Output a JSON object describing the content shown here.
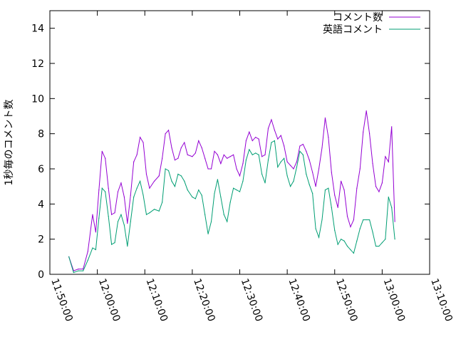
{
  "chart_data": {
    "type": "line",
    "ylabel": "1秒毎のコメント数",
    "xlabel": "",
    "x_range": [
      "11:50:00",
      "13:10:00"
    ],
    "ylim": [
      0,
      15
    ],
    "x_ticks": [
      "11:50:00",
      "12:00:00",
      "12:10:00",
      "12:20:00",
      "12:30:00",
      "12:40:00",
      "12:50:00",
      "13:00:00",
      "13:10:00"
    ],
    "y_ticks": [
      0,
      2,
      4,
      6,
      8,
      10,
      12,
      14
    ],
    "grid": false,
    "legend_position": "top-right",
    "colors": {
      "series1": "#9400d3",
      "series2": "#009e73"
    },
    "series": [
      {
        "name": "コメント数",
        "points": [
          [
            "11:54:00",
            1.0
          ],
          [
            "11:55:00",
            0.2
          ],
          [
            "11:56:00",
            0.3
          ],
          [
            "11:57:00",
            0.3
          ],
          [
            "11:58:00",
            1.3
          ],
          [
            "11:59:00",
            3.4
          ],
          [
            "11:59:40",
            2.4
          ],
          [
            "12:00:20",
            4.8
          ],
          [
            "12:01:00",
            7.0
          ],
          [
            "12:01:40",
            6.6
          ],
          [
            "12:02:20",
            4.9
          ],
          [
            "12:03:00",
            3.4
          ],
          [
            "12:03:40",
            3.5
          ],
          [
            "12:04:20",
            4.7
          ],
          [
            "12:05:00",
            5.2
          ],
          [
            "12:05:40",
            4.4
          ],
          [
            "12:06:20",
            2.9
          ],
          [
            "12:07:00",
            4.5
          ],
          [
            "12:07:40",
            6.4
          ],
          [
            "12:08:20",
            6.8
          ],
          [
            "12:09:00",
            7.8
          ],
          [
            "12:09:40",
            7.5
          ],
          [
            "12:10:20",
            5.7
          ],
          [
            "12:11:00",
            4.9
          ],
          [
            "12:12:00",
            5.3
          ],
          [
            "12:13:00",
            5.6
          ],
          [
            "12:13:40",
            6.6
          ],
          [
            "12:14:20",
            8.0
          ],
          [
            "12:15:00",
            8.2
          ],
          [
            "12:15:40",
            7.2
          ],
          [
            "12:16:20",
            6.5
          ],
          [
            "12:17:00",
            6.6
          ],
          [
            "12:17:40",
            7.2
          ],
          [
            "12:18:20",
            7.5
          ],
          [
            "12:19:00",
            6.8
          ],
          [
            "12:20:00",
            6.7
          ],
          [
            "12:20:40",
            6.9
          ],
          [
            "12:21:20",
            7.6
          ],
          [
            "12:22:00",
            7.2
          ],
          [
            "12:22:40",
            6.6
          ],
          [
            "12:23:20",
            6.0
          ],
          [
            "12:24:00",
            6.0
          ],
          [
            "12:24:40",
            7.0
          ],
          [
            "12:25:20",
            6.8
          ],
          [
            "12:26:00",
            6.3
          ],
          [
            "12:26:40",
            6.8
          ],
          [
            "12:27:20",
            6.6
          ],
          [
            "12:28:00",
            6.7
          ],
          [
            "12:28:40",
            6.8
          ],
          [
            "12:29:20",
            6.0
          ],
          [
            "12:30:00",
            5.6
          ],
          [
            "12:30:40",
            6.3
          ],
          [
            "12:31:20",
            7.6
          ],
          [
            "12:32:00",
            8.1
          ],
          [
            "12:32:40",
            7.6
          ],
          [
            "12:33:20",
            7.8
          ],
          [
            "12:34:00",
            7.7
          ],
          [
            "12:34:40",
            6.7
          ],
          [
            "12:35:20",
            6.8
          ],
          [
            "12:36:00",
            8.3
          ],
          [
            "12:36:40",
            8.8
          ],
          [
            "12:37:20",
            8.2
          ],
          [
            "12:38:00",
            7.7
          ],
          [
            "12:38:40",
            7.9
          ],
          [
            "12:39:20",
            7.3
          ],
          [
            "12:40:00",
            6.4
          ],
          [
            "12:40:40",
            6.2
          ],
          [
            "12:41:20",
            6.0
          ],
          [
            "12:42:00",
            6.4
          ],
          [
            "12:42:40",
            7.3
          ],
          [
            "12:43:20",
            7.4
          ],
          [
            "12:44:00",
            7.0
          ],
          [
            "12:44:40",
            6.5
          ],
          [
            "12:45:20",
            5.8
          ],
          [
            "12:46:00",
            5.0
          ],
          [
            "12:46:40",
            6.0
          ],
          [
            "12:47:20",
            7.2
          ],
          [
            "12:48:00",
            8.9
          ],
          [
            "12:48:40",
            7.8
          ],
          [
            "12:49:20",
            5.8
          ],
          [
            "12:50:00",
            4.5
          ],
          [
            "12:50:40",
            3.8
          ],
          [
            "12:51:20",
            5.3
          ],
          [
            "12:52:00",
            4.8
          ],
          [
            "12:52:40",
            3.3
          ],
          [
            "12:53:20",
            2.7
          ],
          [
            "12:54:00",
            3.1
          ],
          [
            "12:54:40",
            4.9
          ],
          [
            "12:55:20",
            6.0
          ],
          [
            "12:56:00",
            8.1
          ],
          [
            "12:56:40",
            9.3
          ],
          [
            "12:57:20",
            8.0
          ],
          [
            "12:58:00",
            6.3
          ],
          [
            "12:58:40",
            5.0
          ],
          [
            "12:59:20",
            4.7
          ],
          [
            "13:00:00",
            5.2
          ],
          [
            "13:00:40",
            6.7
          ],
          [
            "13:01:20",
            6.4
          ],
          [
            "13:02:00",
            8.4
          ],
          [
            "13:02:40",
            3.0
          ]
        ]
      },
      {
        "name": "英語コメント",
        "points": [
          [
            "11:54:00",
            1.0
          ],
          [
            "11:55:00",
            0.1
          ],
          [
            "11:56:00",
            0.2
          ],
          [
            "11:57:00",
            0.2
          ],
          [
            "11:58:00",
            0.8
          ],
          [
            "11:59:00",
            1.5
          ],
          [
            "11:59:40",
            1.4
          ],
          [
            "12:00:20",
            3.2
          ],
          [
            "12:01:00",
            4.9
          ],
          [
            "12:01:40",
            4.7
          ],
          [
            "12:02:20",
            3.3
          ],
          [
            "12:03:00",
            1.7
          ],
          [
            "12:03:40",
            1.8
          ],
          [
            "12:04:20",
            3.0
          ],
          [
            "12:05:00",
            3.4
          ],
          [
            "12:05:40",
            2.8
          ],
          [
            "12:06:20",
            1.6
          ],
          [
            "12:07:00",
            3.0
          ],
          [
            "12:07:40",
            4.4
          ],
          [
            "12:08:20",
            4.9
          ],
          [
            "12:09:00",
            5.3
          ],
          [
            "12:09:40",
            4.5
          ],
          [
            "12:10:20",
            3.4
          ],
          [
            "12:11:00",
            3.5
          ],
          [
            "12:12:00",
            3.7
          ],
          [
            "12:13:00",
            3.6
          ],
          [
            "12:13:40",
            4.1
          ],
          [
            "12:14:20",
            6.0
          ],
          [
            "12:15:00",
            5.9
          ],
          [
            "12:15:40",
            5.3
          ],
          [
            "12:16:20",
            5.0
          ],
          [
            "12:17:00",
            5.7
          ],
          [
            "12:17:40",
            5.6
          ],
          [
            "12:18:20",
            5.3
          ],
          [
            "12:19:00",
            4.8
          ],
          [
            "12:20:00",
            4.4
          ],
          [
            "12:20:40",
            4.3
          ],
          [
            "12:21:20",
            4.8
          ],
          [
            "12:22:00",
            4.5
          ],
          [
            "12:22:40",
            3.4
          ],
          [
            "12:23:20",
            2.3
          ],
          [
            "12:24:00",
            3.0
          ],
          [
            "12:24:40",
            4.6
          ],
          [
            "12:25:20",
            5.4
          ],
          [
            "12:26:00",
            4.4
          ],
          [
            "12:26:40",
            3.4
          ],
          [
            "12:27:20",
            3.0
          ],
          [
            "12:28:00",
            4.1
          ],
          [
            "12:28:40",
            4.9
          ],
          [
            "12:29:20",
            4.8
          ],
          [
            "12:30:00",
            4.7
          ],
          [
            "12:30:40",
            5.3
          ],
          [
            "12:31:20",
            6.5
          ],
          [
            "12:32:00",
            7.1
          ],
          [
            "12:32:40",
            6.8
          ],
          [
            "12:33:20",
            6.9
          ],
          [
            "12:34:00",
            6.8
          ],
          [
            "12:34:40",
            5.7
          ],
          [
            "12:35:20",
            5.2
          ],
          [
            "12:36:00",
            6.5
          ],
          [
            "12:36:40",
            7.5
          ],
          [
            "12:37:20",
            7.6
          ],
          [
            "12:38:00",
            6.1
          ],
          [
            "12:38:40",
            6.4
          ],
          [
            "12:39:20",
            6.6
          ],
          [
            "12:40:00",
            5.6
          ],
          [
            "12:40:40",
            5.0
          ],
          [
            "12:41:20",
            5.3
          ],
          [
            "12:42:00",
            6.1
          ],
          [
            "12:42:40",
            7.0
          ],
          [
            "12:43:20",
            6.8
          ],
          [
            "12:44:00",
            5.7
          ],
          [
            "12:44:40",
            5.1
          ],
          [
            "12:45:20",
            4.6
          ],
          [
            "12:46:00",
            2.6
          ],
          [
            "12:46:40",
            2.1
          ],
          [
            "12:47:20",
            3.1
          ],
          [
            "12:48:00",
            4.8
          ],
          [
            "12:48:40",
            4.9
          ],
          [
            "12:49:20",
            3.8
          ],
          [
            "12:50:00",
            2.5
          ],
          [
            "12:50:40",
            1.7
          ],
          [
            "12:51:20",
            2.0
          ],
          [
            "12:52:00",
            1.9
          ],
          [
            "12:52:40",
            1.6
          ],
          [
            "12:53:20",
            1.4
          ],
          [
            "12:54:00",
            1.2
          ],
          [
            "12:54:40",
            1.9
          ],
          [
            "12:55:20",
            2.6
          ],
          [
            "12:56:00",
            3.1
          ],
          [
            "12:56:40",
            3.1
          ],
          [
            "12:57:20",
            3.1
          ],
          [
            "12:58:00",
            2.4
          ],
          [
            "12:58:40",
            1.6
          ],
          [
            "12:59:20",
            1.6
          ],
          [
            "13:00:00",
            1.8
          ],
          [
            "13:00:40",
            2.0
          ],
          [
            "13:01:20",
            4.4
          ],
          [
            "13:02:00",
            3.8
          ],
          [
            "13:02:40",
            2.0
          ]
        ]
      }
    ]
  }
}
